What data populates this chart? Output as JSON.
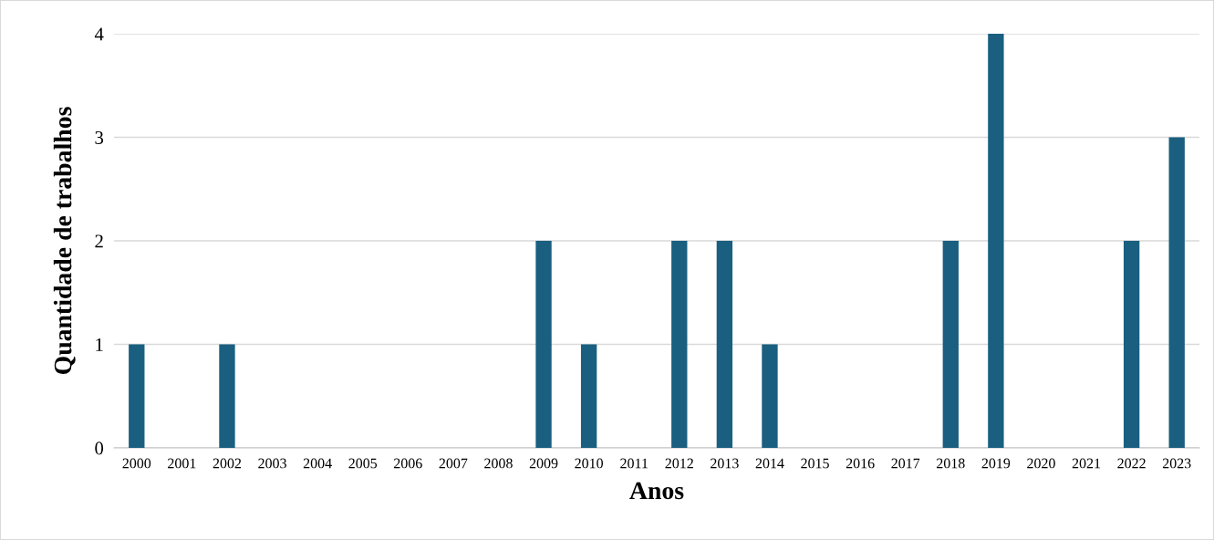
{
  "chart_data": {
    "type": "bar",
    "xlabel": "Anos",
    "ylabel": "Quantidade de trabalhos",
    "categories": [
      "2000",
      "2001",
      "2002",
      "2003",
      "2004",
      "2005",
      "2006",
      "2007",
      "2008",
      "2009",
      "2010",
      "2011",
      "2012",
      "2013",
      "2014",
      "2015",
      "2016",
      "2017",
      "2018",
      "2019",
      "2020",
      "2021",
      "2022",
      "2023"
    ],
    "values": [
      1,
      0,
      1,
      0,
      0,
      0,
      0,
      0,
      0,
      2,
      1,
      0,
      2,
      2,
      1,
      0,
      0,
      0,
      2,
      4,
      0,
      0,
      2,
      3
    ],
    "color": "#1a5f80",
    "ylim": [
      0,
      4
    ],
    "yticks": [
      0,
      1,
      2,
      3,
      4
    ],
    "grid": "y",
    "legend": false
  }
}
